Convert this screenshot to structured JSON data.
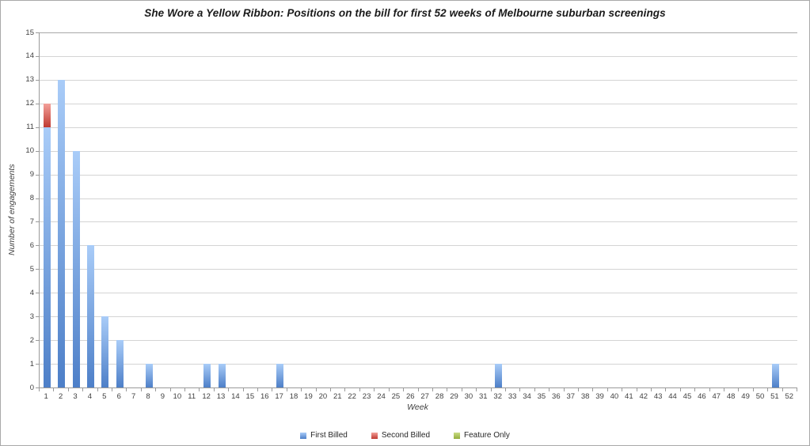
{
  "chart_data": {
    "type": "bar",
    "stacked": true,
    "title": "She Wore a Yellow Ribbon: Positions on the bill for first 52 weeks of Melbourne suburban screenings",
    "xlabel": "Week",
    "ylabel": "Number of engagements",
    "ylim": [
      0,
      15
    ],
    "ytick_step": 1,
    "grid": true,
    "legend_position": "bottom",
    "categories": [
      1,
      2,
      3,
      4,
      5,
      6,
      7,
      8,
      9,
      10,
      11,
      12,
      13,
      14,
      15,
      16,
      17,
      18,
      19,
      20,
      21,
      22,
      23,
      24,
      25,
      26,
      27,
      28,
      29,
      30,
      31,
      32,
      33,
      34,
      35,
      36,
      37,
      38,
      39,
      40,
      41,
      42,
      43,
      44,
      45,
      46,
      47,
      48,
      49,
      50,
      51,
      52
    ],
    "series": [
      {
        "name": "First Billed",
        "color_top": "#a9ccf8",
        "color_bottom": "#4d7fc8",
        "values": [
          11,
          13,
          10,
          6,
          3,
          2,
          0,
          1,
          0,
          0,
          0,
          1,
          1,
          0,
          0,
          0,
          1,
          0,
          0,
          0,
          0,
          0,
          0,
          0,
          0,
          0,
          0,
          0,
          0,
          0,
          0,
          1,
          0,
          0,
          0,
          0,
          0,
          0,
          0,
          0,
          0,
          0,
          0,
          0,
          0,
          0,
          0,
          0,
          0,
          0,
          1,
          0
        ]
      },
      {
        "name": "Second Billed",
        "color_top": "#f3a09a",
        "color_bottom": "#bf3a31",
        "values": [
          1,
          0,
          0,
          0,
          0,
          0,
          0,
          0,
          0,
          0,
          0,
          0,
          0,
          0,
          0,
          0,
          0,
          0,
          0,
          0,
          0,
          0,
          0,
          0,
          0,
          0,
          0,
          0,
          0,
          0,
          0,
          0,
          0,
          0,
          0,
          0,
          0,
          0,
          0,
          0,
          0,
          0,
          0,
          0,
          0,
          0,
          0,
          0,
          0,
          0,
          0,
          0
        ]
      },
      {
        "name": "Feature Only",
        "color_top": "#c9dc85",
        "color_bottom": "#94ad3d",
        "values": [
          0,
          0,
          0,
          0,
          0,
          0,
          0,
          0,
          0,
          0,
          0,
          0,
          0,
          0,
          0,
          0,
          0,
          0,
          0,
          0,
          0,
          0,
          0,
          0,
          0,
          0,
          0,
          0,
          0,
          0,
          0,
          0,
          0,
          0,
          0,
          0,
          0,
          0,
          0,
          0,
          0,
          0,
          0,
          0,
          0,
          0,
          0,
          0,
          0,
          0,
          0,
          0
        ]
      }
    ],
    "colors": {
      "gridline": "#d4d4d4",
      "gridline_top": "#a8a8a8",
      "axis_line": "#9a9a9a",
      "tick_text": "#3f3f3f",
      "title_text": "#1a1a1a"
    }
  }
}
